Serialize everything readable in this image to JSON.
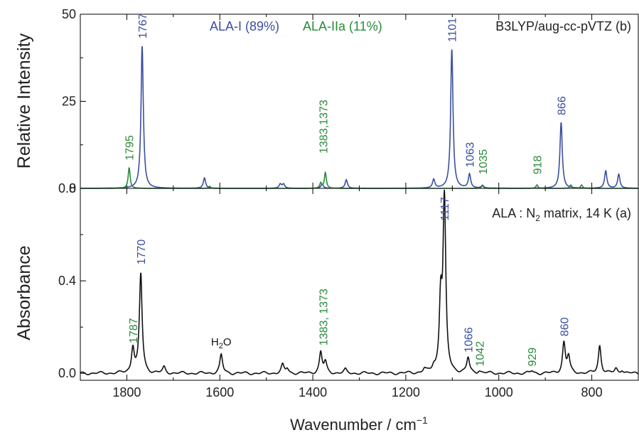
{
  "colors": {
    "blue": "#3a4fa0",
    "green": "#2a8a3a",
    "black": "#111111"
  },
  "chart_data": [
    {
      "id": "top",
      "type": "line",
      "ylabel": "Relative Intensity",
      "ylim": [
        0,
        50
      ],
      "yticks": [
        0,
        25,
        50
      ],
      "xlim": [
        1900,
        700
      ],
      "xticks": [
        1800,
        1600,
        1400,
        1200,
        1000,
        800
      ],
      "panel_label": "B3LYP/aug-cc-pVTZ  (b)",
      "legend": [
        {
          "text": "ALA-I (89%)",
          "color": "blue"
        },
        {
          "text": "ALA-IIa (11%)",
          "color": "green"
        }
      ],
      "series": [
        {
          "name": "ALA-I (89%)",
          "color": "blue",
          "width": 3,
          "peaks": [
            [
              1767,
              41
            ],
            [
              1633,
              3
            ],
            [
              1470,
              1.2
            ],
            [
              1463,
              1.2
            ],
            [
              1380,
              1.2
            ],
            [
              1328,
              2.5
            ],
            [
              1140,
              2.5
            ],
            [
              1101,
              40
            ],
            [
              1063,
              4
            ],
            [
              1035,
              0.8
            ],
            [
              866,
              19
            ],
            [
              770,
              5
            ],
            [
              742,
              4
            ]
          ]
        },
        {
          "name": "ALA-IIa (11%)",
          "color": "green",
          "width": 2.5,
          "peaks": [
            [
              1795,
              6
            ],
            [
              1622,
              0.6
            ],
            [
              1383,
              1.5
            ],
            [
              1373,
              4.5
            ],
            [
              1035,
              0.8
            ],
            [
              918,
              1
            ],
            [
              845,
              1
            ],
            [
              822,
              1
            ]
          ]
        }
      ],
      "annotations": [
        {
          "text": "1767",
          "x": 1767,
          "y": 43,
          "color": "blue"
        },
        {
          "text": "1795",
          "x": 1795,
          "y": 8,
          "color": "green"
        },
        {
          "text": "1383,1373",
          "x": 1378,
          "y": 10,
          "color": "green"
        },
        {
          "text": "1101",
          "x": 1101,
          "y": 42,
          "color": "blue"
        },
        {
          "text": "1063",
          "x": 1063,
          "y": 6,
          "color": "blue"
        },
        {
          "text": "1035",
          "x": 1035,
          "y": 4,
          "color": "green"
        },
        {
          "text": "918",
          "x": 918,
          "y": 4,
          "color": "green"
        },
        {
          "text": "866",
          "x": 866,
          "y": 21,
          "color": "blue"
        }
      ]
    },
    {
      "id": "bottom",
      "type": "line",
      "xlabel": "Wavenumber / cm",
      "xlabel_sup": "−1",
      "ylabel": "Absorbance",
      "ylim": [
        -0.03,
        0.8
      ],
      "yticks": [
        0.0,
        0.4,
        0.8
      ],
      "ytick_labels": [
        "0.0",
        "0.4",
        "0.8"
      ],
      "xlim": [
        1900,
        700
      ],
      "xticks": [
        1800,
        1600,
        1400,
        1200,
        1000,
        800
      ],
      "panel_label_main": "ALA : N",
      "panel_label_sub": "2",
      "panel_label_rest": " matrix, 14 K  (a)",
      "series": [
        {
          "name": "ALA",
          "color": "black",
          "width": 3.5,
          "peaks": [
            [
              1787,
              0.11
            ],
            [
              1770,
              0.43
            ],
            [
              1720,
              0.025
            ],
            [
              1597,
              0.08
            ],
            [
              1465,
              0.035
            ],
            [
              1455,
              0.02
            ],
            [
              1383,
              0.09
            ],
            [
              1373,
              0.045
            ],
            [
              1330,
              0.015
            ],
            [
              1160,
              0.015
            ],
            [
              1140,
              0.02
            ],
            [
              1125,
              0.3
            ],
            [
              1117,
              0.74
            ],
            [
              1066,
              0.065
            ],
            [
              1042,
              0.01
            ],
            [
              929,
              0.01
            ],
            [
              860,
              0.13
            ],
            [
              850,
              0.07
            ],
            [
              783,
              0.12
            ],
            [
              748,
              0.02
            ],
            [
              735,
              0.015
            ]
          ]
        }
      ],
      "annotations": [
        {
          "text": "1787",
          "x": 1787,
          "y": 0.13,
          "color": "green"
        },
        {
          "text": "1770",
          "x": 1770,
          "y": 0.47,
          "color": "blue"
        },
        {
          "text": "1383, 1373",
          "x": 1378,
          "y": 0.12,
          "color": "green"
        },
        {
          "text": "1117",
          "x": 1117,
          "y": 0.66,
          "color": "blue"
        },
        {
          "text": "1066",
          "x": 1066,
          "y": 0.09,
          "color": "blue"
        },
        {
          "text": "1042",
          "x": 1042,
          "y": 0.03,
          "color": "green"
        },
        {
          "text": "929",
          "x": 929,
          "y": 0.03,
          "color": "green"
        },
        {
          "text": "860",
          "x": 860,
          "y": 0.16,
          "color": "blue"
        }
      ],
      "h2o_label": {
        "main": "H",
        "sub": "2",
        "rest": "O",
        "x": 1597,
        "y": 0.12
      }
    }
  ]
}
